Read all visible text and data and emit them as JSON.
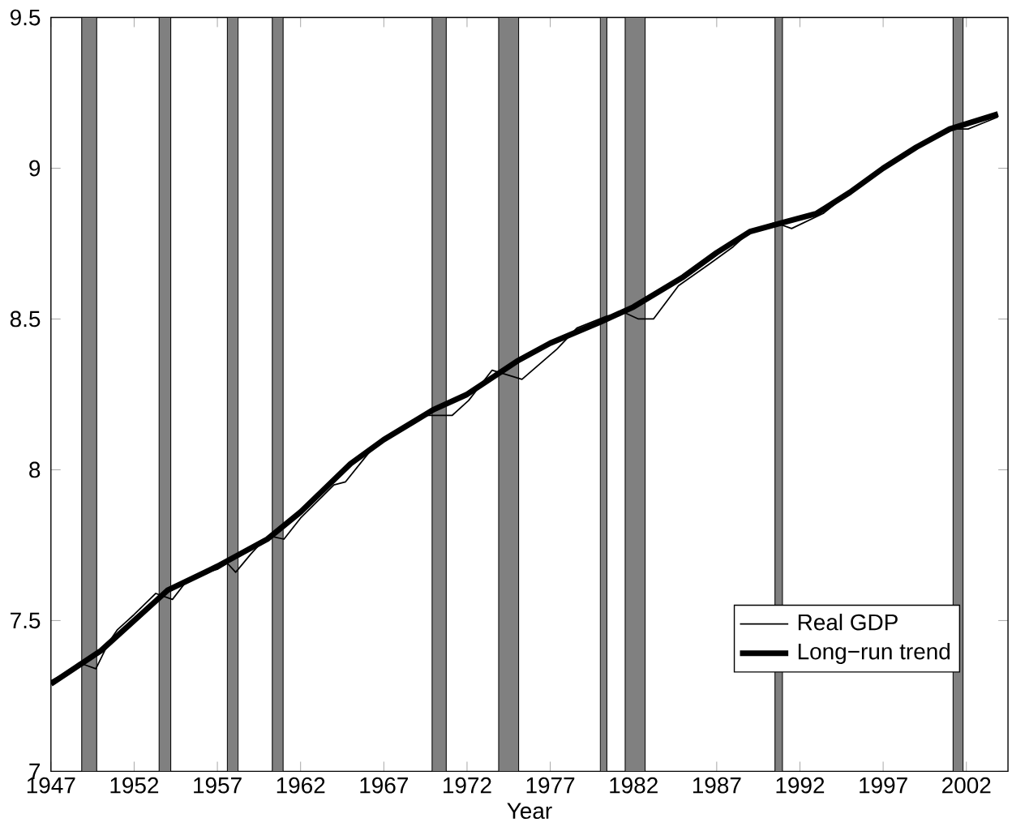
{
  "chart_data": {
    "type": "line",
    "xlabel": "Year",
    "xlim": [
      1947,
      2004.5
    ],
    "ylim": [
      7,
      9.5
    ],
    "xticks": [
      1947,
      1952,
      1957,
      1962,
      1967,
      1972,
      1977,
      1982,
      1987,
      1992,
      1997,
      2002
    ],
    "yticks": [
      7,
      7.5,
      8,
      8.5,
      9,
      9.5
    ],
    "grid": false,
    "legend": "bottom right",
    "series": [
      {
        "name": "Real GDP",
        "color": "#000000",
        "line_style": "solid",
        "x": [
          1947,
          1948,
          1948.7,
          1949.2,
          1949.7,
          1950.5,
          1951,
          1952,
          1953.3,
          1954.3,
          1955,
          1955.8,
          1957,
          1957.6,
          1958.1,
          1959,
          1959.5,
          1960.2,
          1961,
          1962,
          1964,
          1964.7,
          1966.3,
          1969.4,
          1971.1,
          1972.1,
          1973.5,
          1975.3,
          1977.4,
          1978.6,
          1980.4,
          1981.5,
          1982.3,
          1983.2,
          1984.7,
          1986.5,
          1988,
          1989,
          1990.5,
          1991.5,
          1993.4,
          1995,
          1997,
          1999,
          2000.4,
          2001,
          2002.1,
          2003,
          2003.9
        ],
        "values": [
          7.3,
          7.33,
          7.36,
          7.35,
          7.34,
          7.43,
          7.47,
          7.52,
          7.59,
          7.57,
          7.62,
          7.65,
          7.67,
          7.69,
          7.66,
          7.72,
          7.75,
          7.78,
          7.77,
          7.84,
          7.95,
          7.96,
          8.07,
          8.18,
          8.18,
          8.23,
          8.33,
          8.3,
          8.4,
          8.47,
          8.51,
          8.52,
          8.5,
          8.5,
          8.61,
          8.68,
          8.74,
          8.79,
          8.82,
          8.8,
          8.85,
          8.92,
          9.0,
          9.07,
          9.11,
          9.13,
          9.13,
          9.15,
          9.17
        ]
      },
      {
        "name": "Long−run trend",
        "color": "#000000",
        "line_style": "solid",
        "x": [
          1947,
          1950,
          1952,
          1954,
          1957,
          1960,
          1962,
          1965,
          1967,
          1970,
          1972,
          1975,
          1977,
          1980,
          1982,
          1985,
          1987,
          1989,
          1991,
          1993,
          1995,
          1997,
          1999,
          2001,
          2003.9
        ],
        "values": [
          7.29,
          7.4,
          7.5,
          7.6,
          7.68,
          7.77,
          7.86,
          8.02,
          8.1,
          8.2,
          8.25,
          8.36,
          8.42,
          8.49,
          8.54,
          8.64,
          8.72,
          8.79,
          8.82,
          8.85,
          8.92,
          9.0,
          9.07,
          9.13,
          9.18
        ]
      }
    ],
    "bands": [
      {
        "axis": "x",
        "from": 1948.85,
        "to": 1949.75,
        "color": "#808080"
      },
      {
        "axis": "x",
        "from": 1953.5,
        "to": 1954.2,
        "color": "#808080"
      },
      {
        "axis": "x",
        "from": 1957.6,
        "to": 1958.25,
        "color": "#808080"
      },
      {
        "axis": "x",
        "from": 1960.3,
        "to": 1960.95,
        "color": "#808080"
      },
      {
        "axis": "x",
        "from": 1969.9,
        "to": 1970.75,
        "color": "#808080"
      },
      {
        "axis": "x",
        "from": 1973.9,
        "to": 1975.1,
        "color": "#808080"
      },
      {
        "axis": "x",
        "from": 1980.0,
        "to": 1980.4,
        "color": "#808080"
      },
      {
        "axis": "x",
        "from": 1981.5,
        "to": 1982.7,
        "color": "#808080"
      },
      {
        "axis": "x",
        "from": 1990.5,
        "to": 1990.95,
        "color": "#808080"
      },
      {
        "axis": "x",
        "from": 2001.2,
        "to": 2001.8,
        "color": "#808080"
      }
    ]
  }
}
